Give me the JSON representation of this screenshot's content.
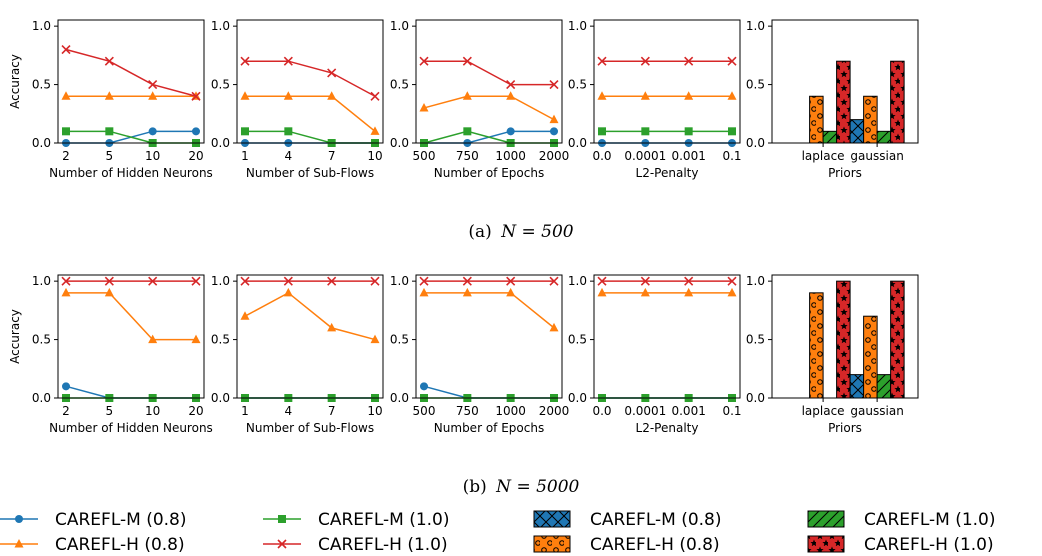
{
  "figure": {
    "captions": [
      {
        "label": "(a)",
        "math": "N = 500"
      },
      {
        "label": "(b)",
        "math": "N = 5000"
      }
    ],
    "colors": {
      "carefl_m_08": "#1f77b4",
      "carefl_h_08": "#ff7f0e",
      "carefl_m_10": "#2ca02c",
      "carefl_h_10": "#d62728"
    }
  },
  "legend": [
    {
      "label": "CAREFL-M (0.8)",
      "kind": "line",
      "marker": "circle",
      "color": "#1f77b4"
    },
    {
      "label": "CAREFL-M (1.0)",
      "kind": "line",
      "marker": "square",
      "color": "#2ca02c"
    },
    {
      "label": "CAREFL-M (0.8)",
      "kind": "bar",
      "hatch": "cross",
      "color": "#1f77b4"
    },
    {
      "label": "CAREFL-M (1.0)",
      "kind": "bar",
      "hatch": "slash",
      "color": "#2ca02c"
    },
    {
      "label": "CAREFL-H (0.8)",
      "kind": "line",
      "marker": "triangle",
      "color": "#ff7f0e"
    },
    {
      "label": "CAREFL-H (1.0)",
      "kind": "line",
      "marker": "x",
      "color": "#d62728"
    },
    {
      "label": "CAREFL-H (0.8)",
      "kind": "bar",
      "hatch": "circles",
      "color": "#ff7f0e"
    },
    {
      "label": "CAREFL-H (1.0)",
      "kind": "bar",
      "hatch": "stars",
      "color": "#d62728"
    }
  ],
  "chart_data": [
    {
      "type": "line",
      "row": "a",
      "xlabel": "Number of Hidden Neurons",
      "ylabel": "Accuracy",
      "categories": [
        "2",
        "5",
        "10",
        "20"
      ],
      "ylim": [
        0,
        1.0
      ],
      "yticks": [
        "0.0",
        "0.5",
        "1.0"
      ],
      "series": [
        {
          "name": "CAREFL-M (0.8)",
          "values": [
            0.0,
            0.0,
            0.1,
            0.1
          ]
        },
        {
          "name": "CAREFL-H (0.8)",
          "values": [
            0.4,
            0.4,
            0.4,
            0.4
          ]
        },
        {
          "name": "CAREFL-M (1.0)",
          "values": [
            0.1,
            0.1,
            0.0,
            0.0
          ]
        },
        {
          "name": "CAREFL-H (1.0)",
          "values": [
            0.8,
            0.7,
            0.5,
            0.4
          ]
        }
      ]
    },
    {
      "type": "line",
      "row": "a",
      "xlabel": "Number of Sub-Flows",
      "ylabel": "",
      "categories": [
        "1",
        "4",
        "7",
        "10"
      ],
      "ylim": [
        0,
        1.0
      ],
      "yticks": [
        "0.0",
        "0.5",
        "1.0"
      ],
      "series": [
        {
          "name": "CAREFL-M (0.8)",
          "values": [
            0.0,
            0.0,
            0.0,
            0.0
          ]
        },
        {
          "name": "CAREFL-H (0.8)",
          "values": [
            0.4,
            0.4,
            0.4,
            0.1
          ]
        },
        {
          "name": "CAREFL-M (1.0)",
          "values": [
            0.1,
            0.1,
            0.0,
            0.0
          ]
        },
        {
          "name": "CAREFL-H (1.0)",
          "values": [
            0.7,
            0.7,
            0.6,
            0.4
          ]
        }
      ]
    },
    {
      "type": "line",
      "row": "a",
      "xlabel": "Number of Epochs",
      "ylabel": "",
      "categories": [
        "500",
        "750",
        "1000",
        "2000"
      ],
      "ylim": [
        0,
        1.0
      ],
      "yticks": [
        "0.0",
        "0.5",
        "1.0"
      ],
      "series": [
        {
          "name": "CAREFL-M (0.8)",
          "values": [
            0.0,
            0.0,
            0.1,
            0.1
          ]
        },
        {
          "name": "CAREFL-H (0.8)",
          "values": [
            0.3,
            0.4,
            0.4,
            0.2
          ]
        },
        {
          "name": "CAREFL-M (1.0)",
          "values": [
            0.0,
            0.1,
            0.0,
            0.0
          ]
        },
        {
          "name": "CAREFL-H (1.0)",
          "values": [
            0.7,
            0.7,
            0.5,
            0.5
          ]
        }
      ]
    },
    {
      "type": "line",
      "row": "a",
      "xlabel": "L2-Penalty",
      "ylabel": "",
      "categories": [
        "0.0",
        "0.0001",
        "0.001",
        "0.1"
      ],
      "ylim": [
        0,
        1.0
      ],
      "yticks": [
        "0.0",
        "0.5",
        "1.0"
      ],
      "series": [
        {
          "name": "CAREFL-M (0.8)",
          "values": [
            0.0,
            0.0,
            0.0,
            0.0
          ]
        },
        {
          "name": "CAREFL-H (0.8)",
          "values": [
            0.4,
            0.4,
            0.4,
            0.4
          ]
        },
        {
          "name": "CAREFL-M (1.0)",
          "values": [
            0.1,
            0.1,
            0.1,
            0.1
          ]
        },
        {
          "name": "CAREFL-H (1.0)",
          "values": [
            0.7,
            0.7,
            0.7,
            0.7
          ]
        }
      ]
    },
    {
      "type": "bar",
      "row": "a",
      "xlabel": "Priors",
      "ylabel": "",
      "categories": [
        "laplace",
        "gaussian"
      ],
      "ylim": [
        0,
        1.0
      ],
      "yticks": [
        "0.0",
        "0.5",
        "1.0"
      ],
      "series": [
        {
          "name": "CAREFL-M (0.8)",
          "values": [
            0.0,
            0.2
          ]
        },
        {
          "name": "CAREFL-H (0.8)",
          "values": [
            0.4,
            0.4
          ]
        },
        {
          "name": "CAREFL-M (1.0)",
          "values": [
            0.1,
            0.1
          ]
        },
        {
          "name": "CAREFL-H (1.0)",
          "values": [
            0.7,
            0.7
          ]
        }
      ]
    },
    {
      "type": "line",
      "row": "b",
      "xlabel": "Number of Hidden Neurons",
      "ylabel": "Accuracy",
      "categories": [
        "2",
        "5",
        "10",
        "20"
      ],
      "ylim": [
        0,
        1.0
      ],
      "yticks": [
        "0.0",
        "0.5",
        "1.0"
      ],
      "series": [
        {
          "name": "CAREFL-M (0.8)",
          "values": [
            0.1,
            0.0,
            0.0,
            0.0
          ]
        },
        {
          "name": "CAREFL-H (0.8)",
          "values": [
            0.9,
            0.9,
            0.5,
            0.5
          ]
        },
        {
          "name": "CAREFL-M (1.0)",
          "values": [
            0.0,
            0.0,
            0.0,
            0.0
          ]
        },
        {
          "name": "CAREFL-H (1.0)",
          "values": [
            1.0,
            1.0,
            1.0,
            1.0
          ]
        }
      ]
    },
    {
      "type": "line",
      "row": "b",
      "xlabel": "Number of Sub-Flows",
      "ylabel": "",
      "categories": [
        "1",
        "4",
        "7",
        "10"
      ],
      "ylim": [
        0,
        1.0
      ],
      "yticks": [
        "0.0",
        "0.5",
        "1.0"
      ],
      "series": [
        {
          "name": "CAREFL-M (0.8)",
          "values": [
            0.0,
            0.0,
            0.0,
            0.0
          ]
        },
        {
          "name": "CAREFL-H (0.8)",
          "values": [
            0.7,
            0.9,
            0.6,
            0.5
          ]
        },
        {
          "name": "CAREFL-M (1.0)",
          "values": [
            0.0,
            0.0,
            0.0,
            0.0
          ]
        },
        {
          "name": "CAREFL-H (1.0)",
          "values": [
            1.0,
            1.0,
            1.0,
            1.0
          ]
        }
      ]
    },
    {
      "type": "line",
      "row": "b",
      "xlabel": "Number of Epochs",
      "ylabel": "",
      "categories": [
        "500",
        "750",
        "1000",
        "2000"
      ],
      "ylim": [
        0,
        1.0
      ],
      "yticks": [
        "0.0",
        "0.5",
        "1.0"
      ],
      "series": [
        {
          "name": "CAREFL-M (0.8)",
          "values": [
            0.1,
            0.0,
            0.0,
            0.0
          ]
        },
        {
          "name": "CAREFL-H (0.8)",
          "values": [
            0.9,
            0.9,
            0.9,
            0.6
          ]
        },
        {
          "name": "CAREFL-M (1.0)",
          "values": [
            0.0,
            0.0,
            0.0,
            0.0
          ]
        },
        {
          "name": "CAREFL-H (1.0)",
          "values": [
            1.0,
            1.0,
            1.0,
            1.0
          ]
        }
      ]
    },
    {
      "type": "line",
      "row": "b",
      "xlabel": "L2-Penalty",
      "ylabel": "",
      "categories": [
        "0.0",
        "0.0001",
        "0.001",
        "0.1"
      ],
      "ylim": [
        0,
        1.0
      ],
      "yticks": [
        "0.0",
        "0.5",
        "1.0"
      ],
      "series": [
        {
          "name": "CAREFL-M (0.8)",
          "values": [
            0.0,
            0.0,
            0.0,
            0.0
          ]
        },
        {
          "name": "CAREFL-H (0.8)",
          "values": [
            0.9,
            0.9,
            0.9,
            0.9
          ]
        },
        {
          "name": "CAREFL-M (1.0)",
          "values": [
            0.0,
            0.0,
            0.0,
            0.0
          ]
        },
        {
          "name": "CAREFL-H (1.0)",
          "values": [
            1.0,
            1.0,
            1.0,
            1.0
          ]
        }
      ]
    },
    {
      "type": "bar",
      "row": "b",
      "xlabel": "Priors",
      "ylabel": "",
      "categories": [
        "laplace",
        "gaussian"
      ],
      "ylim": [
        0,
        1.0
      ],
      "yticks": [
        "0.0",
        "0.5",
        "1.0"
      ],
      "series": [
        {
          "name": "CAREFL-M (0.8)",
          "values": [
            0.0,
            0.2
          ]
        },
        {
          "name": "CAREFL-H (0.8)",
          "values": [
            0.9,
            0.7
          ]
        },
        {
          "name": "CAREFL-M (1.0)",
          "values": [
            0.0,
            0.2
          ]
        },
        {
          "name": "CAREFL-H (1.0)",
          "values": [
            1.0,
            1.0
          ]
        }
      ]
    }
  ]
}
